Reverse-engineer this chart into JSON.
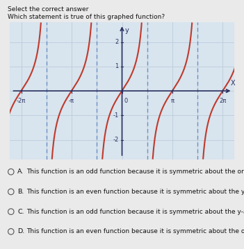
{
  "xlabel": "X",
  "ylabel": "y",
  "xlim": [
    -7.0,
    7.0
  ],
  "ylim": [
    -2.8,
    2.8
  ],
  "xtick_vals": [
    -6.283185307,
    -3.141592654,
    0,
    3.141592654,
    6.283185307
  ],
  "xtick_labels": [
    "-2π",
    "-π",
    "0",
    "π",
    "2π"
  ],
  "ytick_vals": [
    -2,
    -1,
    1,
    2
  ],
  "ytick_labels": [
    "-2",
    "-1",
    "1",
    "2"
  ],
  "curve_color": "#c0392b",
  "asymptote_color": "#6b8fc4",
  "plot_bg": "#d8e4ee",
  "fig_bg": "#eaeaea",
  "axis_color": "#2c3060",
  "grid_color": "#b8c8d8",
  "options": [
    {
      "label": "A.",
      "text": "This function is an odd function because it is symmetric about the origin."
    },
    {
      "label": "B.",
      "text": "This function is an even function because it is symmetric about the y-axis."
    },
    {
      "label": "C.",
      "text": "This function is an odd function because it is symmetric about the y-axis."
    },
    {
      "label": "D.",
      "text": "This function is an even function because it is symmetric about the origin."
    }
  ],
  "header_line1": "Select the correct answer",
  "header_line2": "Which statement is true of this graphed function?"
}
